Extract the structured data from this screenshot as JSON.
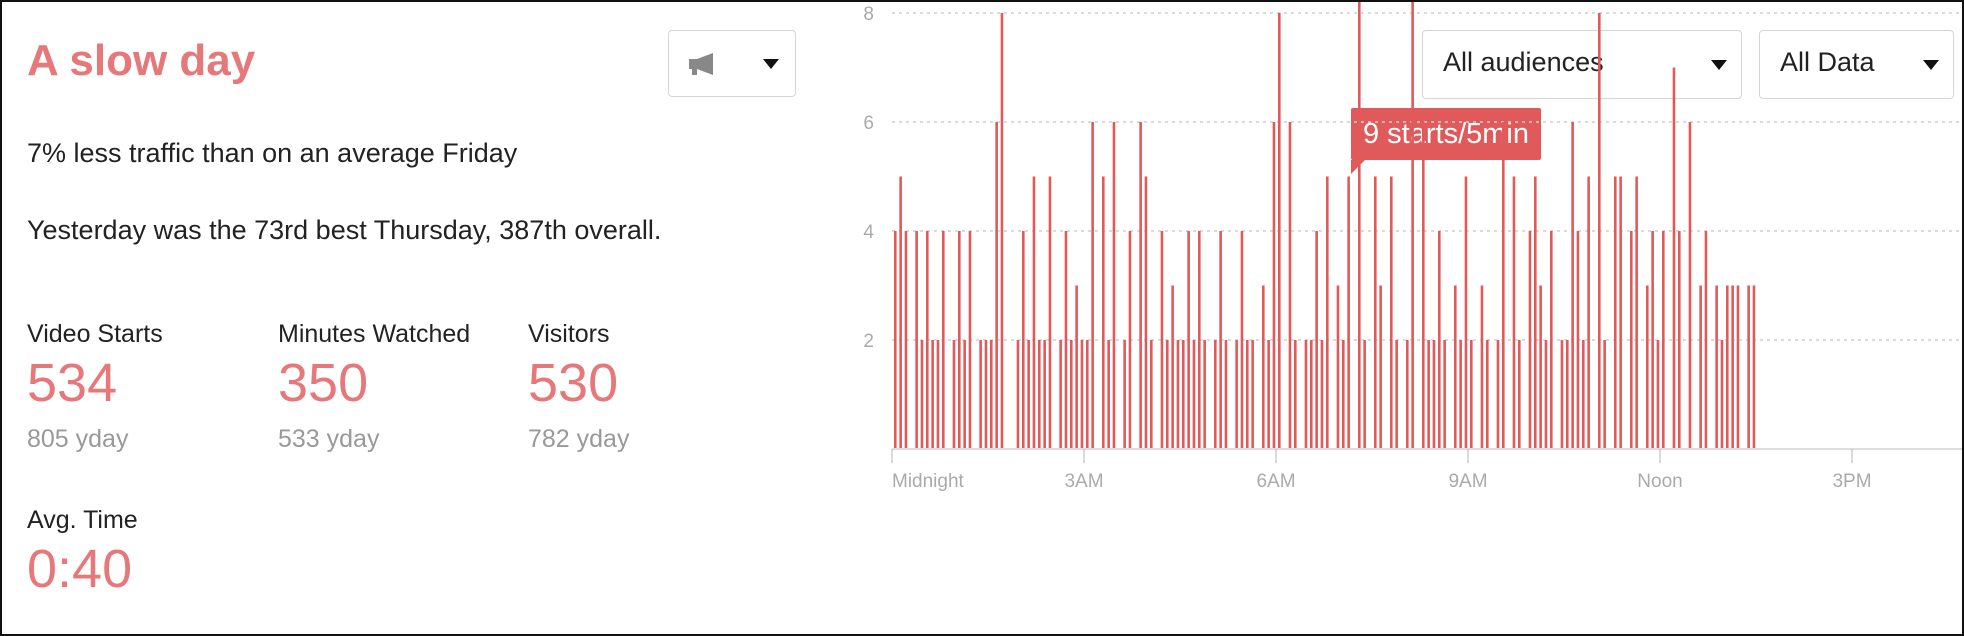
{
  "header": {
    "title": "A slow day"
  },
  "summary": {
    "traffic_line": "7% less traffic than on an average Friday",
    "rank_line": "Yesterday was the 73rd best Thursday, 387th overall."
  },
  "stats": [
    {
      "label": "Video Starts",
      "value": "534",
      "yday": "805 yday"
    },
    {
      "label": "Minutes Watched",
      "value": "350",
      "yday": "533 yday"
    },
    {
      "label": "Visitors",
      "value": "530",
      "yday": "782 yday"
    },
    {
      "label": "Avg. Time",
      "value": "0:40",
      "yday": ""
    }
  ],
  "controls": {
    "annotation_dropdown": {
      "icon": "megaphone-icon"
    },
    "audience_dropdown": {
      "selected": "All audiences"
    },
    "data_dropdown": {
      "selected": "All Data"
    }
  },
  "tooltip": {
    "text": "9 starts/5min"
  },
  "colors": {
    "accent": "#e6787a",
    "bar": "#e05a5c",
    "muted": "#999999"
  },
  "chart_data": {
    "type": "bar",
    "title": "",
    "xlabel": "",
    "ylabel": "",
    "x_tick_labels": [
      "Midnight",
      "3AM",
      "6AM",
      "9AM",
      "Noon",
      "3PM"
    ],
    "y_tick_labels": [
      "2",
      "4",
      "6",
      "8"
    ],
    "ylim": [
      0,
      9.5
    ],
    "x_range_hours": [
      0,
      16.5
    ],
    "bin_minutes": 5,
    "values": [
      4,
      5,
      4,
      0,
      4,
      2,
      4,
      2,
      2,
      4,
      0,
      2,
      4,
      2,
      4,
      0,
      2,
      2,
      2,
      6,
      8,
      0,
      0,
      2,
      4,
      2,
      5,
      2,
      2,
      5,
      0,
      2,
      4,
      2,
      3,
      2,
      2,
      6,
      0,
      5,
      2,
      6,
      0,
      2,
      4,
      0,
      6,
      5,
      2,
      0,
      4,
      2,
      3,
      2,
      2,
      4,
      2,
      4,
      2,
      0,
      2,
      4,
      2,
      0,
      2,
      4,
      2,
      2,
      0,
      3,
      2,
      6,
      8,
      0,
      6,
      2,
      0,
      2,
      2,
      4,
      2,
      5,
      0,
      3,
      2,
      5,
      0,
      9,
      2,
      0,
      5,
      3,
      0,
      5,
      2,
      0,
      2,
      9,
      0,
      6,
      2,
      2,
      4,
      2,
      0,
      3,
      2,
      5,
      2,
      0,
      3,
      2,
      0,
      2,
      6,
      0,
      5,
      2,
      0,
      4,
      5,
      3,
      2,
      4,
      0,
      2,
      2,
      6,
      4,
      2,
      5,
      0,
      8,
      2,
      0,
      5,
      5,
      0,
      4,
      5,
      0,
      3,
      4,
      2,
      4,
      0,
      7,
      4,
      0,
      6,
      0,
      3,
      4,
      0,
      3,
      2,
      3,
      3,
      3,
      0,
      3,
      3
    ],
    "grid": true
  }
}
